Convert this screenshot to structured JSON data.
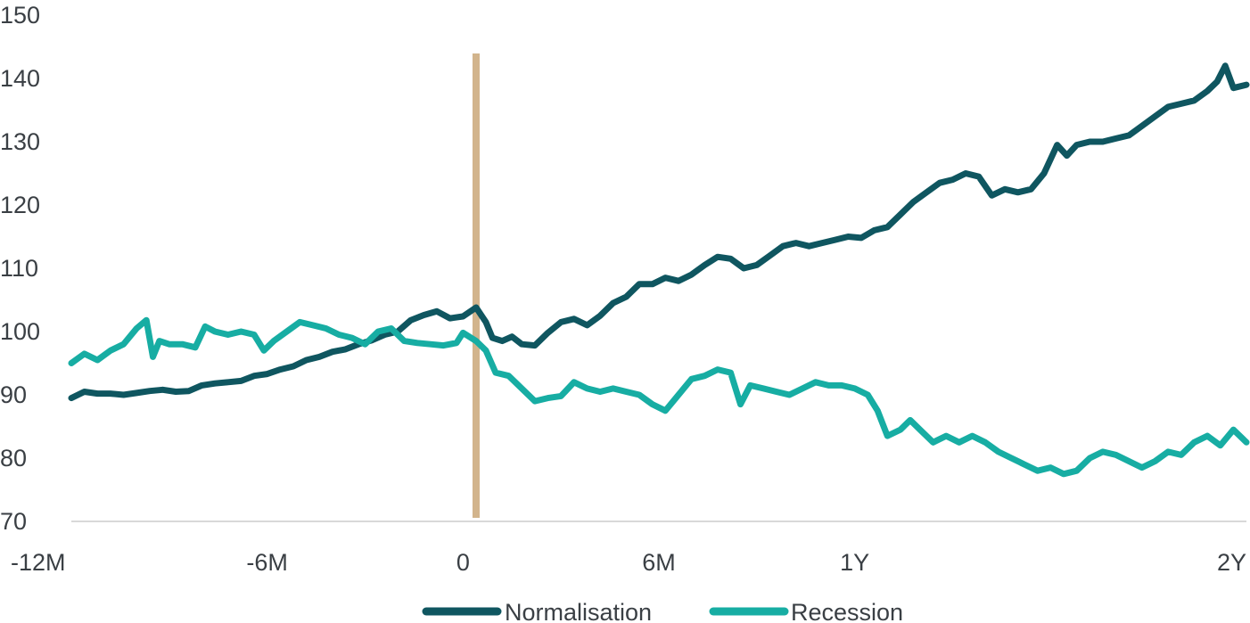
{
  "chart_data": {
    "type": "line",
    "title": "",
    "xlabel": "",
    "ylabel": "",
    "ylim": [
      70,
      150
    ],
    "yticks": [
      "70",
      "80",
      "90",
      "100",
      "110",
      "120",
      "130",
      "140",
      "150"
    ],
    "xlim": [
      -12,
      24
    ],
    "xtick_values": [
      -12,
      -6,
      0,
      6,
      12,
      24
    ],
    "xtick_labels": [
      "-12M",
      "-6M",
      "0",
      "6M",
      "1Y",
      "2Y"
    ],
    "grid": false,
    "legend_position": "bottom-center",
    "event_marker": {
      "x": 0.4,
      "color": "#d2b48c"
    },
    "series": [
      {
        "name": "Normalisation",
        "color": "#0f5660",
        "points": [
          [
            -12,
            89.5
          ],
          [
            -11.6,
            90.5
          ],
          [
            -11.2,
            90.2
          ],
          [
            -10.8,
            90.2
          ],
          [
            -10.4,
            90.0
          ],
          [
            -10.0,
            90.3
          ],
          [
            -9.6,
            90.6
          ],
          [
            -9.2,
            90.8
          ],
          [
            -8.8,
            90.5
          ],
          [
            -8.4,
            90.6
          ],
          [
            -8.0,
            91.5
          ],
          [
            -7.6,
            91.8
          ],
          [
            -7.2,
            92.0
          ],
          [
            -6.8,
            92.2
          ],
          [
            -6.4,
            93.0
          ],
          [
            -6.0,
            93.3
          ],
          [
            -5.6,
            94.0
          ],
          [
            -5.2,
            94.5
          ],
          [
            -4.8,
            95.5
          ],
          [
            -4.4,
            96.0
          ],
          [
            -4.0,
            96.8
          ],
          [
            -3.6,
            97.2
          ],
          [
            -3.2,
            98.0
          ],
          [
            -2.8,
            98.6
          ],
          [
            -2.4,
            99.5
          ],
          [
            -2.0,
            100.0
          ],
          [
            -1.6,
            101.8
          ],
          [
            -1.2,
            102.6
          ],
          [
            -0.8,
            103.2
          ],
          [
            -0.4,
            102.1
          ],
          [
            0.0,
            102.4
          ],
          [
            0.4,
            103.8
          ],
          [
            0.7,
            101.5
          ],
          [
            0.9,
            99.0
          ],
          [
            1.2,
            98.5
          ],
          [
            1.5,
            99.2
          ],
          [
            1.8,
            98.0
          ],
          [
            2.2,
            97.8
          ],
          [
            2.6,
            99.8
          ],
          [
            3.0,
            101.5
          ],
          [
            3.4,
            102.0
          ],
          [
            3.8,
            101.0
          ],
          [
            4.2,
            102.5
          ],
          [
            4.6,
            104.5
          ],
          [
            5.0,
            105.5
          ],
          [
            5.4,
            107.5
          ],
          [
            5.8,
            107.5
          ],
          [
            6.2,
            108.5
          ],
          [
            6.6,
            108.0
          ],
          [
            7.0,
            109.0
          ],
          [
            7.4,
            110.5
          ],
          [
            7.8,
            111.8
          ],
          [
            8.2,
            111.5
          ],
          [
            8.6,
            110.0
          ],
          [
            9.0,
            110.5
          ],
          [
            9.4,
            112.0
          ],
          [
            9.8,
            113.5
          ],
          [
            10.2,
            114.0
          ],
          [
            10.6,
            113.5
          ],
          [
            11.0,
            114.0
          ],
          [
            11.4,
            114.5
          ],
          [
            11.8,
            115.0
          ],
          [
            12.2,
            114.8
          ],
          [
            12.6,
            116.0
          ],
          [
            13.0,
            116.5
          ],
          [
            13.4,
            118.5
          ],
          [
            13.8,
            120.5
          ],
          [
            14.2,
            122.0
          ],
          [
            14.6,
            123.5
          ],
          [
            15.0,
            124.0
          ],
          [
            15.4,
            125.0
          ],
          [
            15.8,
            124.5
          ],
          [
            16.2,
            121.5
          ],
          [
            16.6,
            122.5
          ],
          [
            17.0,
            122.0
          ],
          [
            17.4,
            122.5
          ],
          [
            17.8,
            125.0
          ],
          [
            18.2,
            129.5
          ],
          [
            18.5,
            127.8
          ],
          [
            18.8,
            129.5
          ],
          [
            19.2,
            130.0
          ],
          [
            19.6,
            130.0
          ],
          [
            20.0,
            130.5
          ],
          [
            20.4,
            131.0
          ],
          [
            20.8,
            132.5
          ],
          [
            21.2,
            134.0
          ],
          [
            21.6,
            135.5
          ],
          [
            22.0,
            136.0
          ],
          [
            22.4,
            136.5
          ],
          [
            22.8,
            138.0
          ],
          [
            23.1,
            139.5
          ],
          [
            23.35,
            142.0
          ],
          [
            23.6,
            138.5
          ],
          [
            24.0,
            139.0
          ]
        ]
      },
      {
        "name": "Recession",
        "color": "#17ada3",
        "points": [
          [
            -12,
            95.0
          ],
          [
            -11.6,
            96.5
          ],
          [
            -11.2,
            95.5
          ],
          [
            -10.8,
            97.0
          ],
          [
            -10.4,
            98.0
          ],
          [
            -10.0,
            100.5
          ],
          [
            -9.7,
            101.8
          ],
          [
            -9.5,
            96.0
          ],
          [
            -9.3,
            98.5
          ],
          [
            -9.0,
            98.0
          ],
          [
            -8.6,
            98.0
          ],
          [
            -8.2,
            97.5
          ],
          [
            -7.9,
            100.8
          ],
          [
            -7.6,
            100.0
          ],
          [
            -7.2,
            99.5
          ],
          [
            -6.8,
            100.0
          ],
          [
            -6.4,
            99.5
          ],
          [
            -6.1,
            97.0
          ],
          [
            -5.8,
            98.5
          ],
          [
            -5.4,
            100.0
          ],
          [
            -5.0,
            101.5
          ],
          [
            -4.6,
            101.0
          ],
          [
            -4.2,
            100.5
          ],
          [
            -3.8,
            99.5
          ],
          [
            -3.4,
            99.0
          ],
          [
            -3.0,
            98.0
          ],
          [
            -2.6,
            100.0
          ],
          [
            -2.2,
            100.5
          ],
          [
            -1.8,
            98.5
          ],
          [
            -1.4,
            98.2
          ],
          [
            -1.0,
            98.0
          ],
          [
            -0.6,
            97.8
          ],
          [
            -0.2,
            98.2
          ],
          [
            0.0,
            99.8
          ],
          [
            0.4,
            98.5
          ],
          [
            0.7,
            97.0
          ],
          [
            1.0,
            93.5
          ],
          [
            1.4,
            93.0
          ],
          [
            1.8,
            91.0
          ],
          [
            2.2,
            89.0
          ],
          [
            2.6,
            89.5
          ],
          [
            3.0,
            89.8
          ],
          [
            3.4,
            92.0
          ],
          [
            3.8,
            91.0
          ],
          [
            4.2,
            90.5
          ],
          [
            4.6,
            91.0
          ],
          [
            5.0,
            90.5
          ],
          [
            5.4,
            90.0
          ],
          [
            5.8,
            88.5
          ],
          [
            6.2,
            87.5
          ],
          [
            6.6,
            90.0
          ],
          [
            7.0,
            92.5
          ],
          [
            7.4,
            93.0
          ],
          [
            7.8,
            94.0
          ],
          [
            8.2,
            93.5
          ],
          [
            8.5,
            88.5
          ],
          [
            8.8,
            91.5
          ],
          [
            9.2,
            91.0
          ],
          [
            9.6,
            90.5
          ],
          [
            10.0,
            90.0
          ],
          [
            10.4,
            91.0
          ],
          [
            10.8,
            92.0
          ],
          [
            11.2,
            91.5
          ],
          [
            11.6,
            91.5
          ],
          [
            12.0,
            91.0
          ],
          [
            12.4,
            90.0
          ],
          [
            12.7,
            87.5
          ],
          [
            13.0,
            83.5
          ],
          [
            13.4,
            84.5
          ],
          [
            13.7,
            86.0
          ],
          [
            14.0,
            84.5
          ],
          [
            14.4,
            82.5
          ],
          [
            14.8,
            83.5
          ],
          [
            15.2,
            82.5
          ],
          [
            15.6,
            83.5
          ],
          [
            16.0,
            82.5
          ],
          [
            16.4,
            81.0
          ],
          [
            16.8,
            80.0
          ],
          [
            17.2,
            79.0
          ],
          [
            17.6,
            78.0
          ],
          [
            18.0,
            78.5
          ],
          [
            18.4,
            77.5
          ],
          [
            18.8,
            78.0
          ],
          [
            19.2,
            80.0
          ],
          [
            19.6,
            81.0
          ],
          [
            20.0,
            80.5
          ],
          [
            20.4,
            79.5
          ],
          [
            20.8,
            78.5
          ],
          [
            21.2,
            79.5
          ],
          [
            21.6,
            81.0
          ],
          [
            22.0,
            80.5
          ],
          [
            22.4,
            82.5
          ],
          [
            22.8,
            83.5
          ],
          [
            23.2,
            82.0
          ],
          [
            23.6,
            84.5
          ],
          [
            24.0,
            82.5
          ]
        ]
      }
    ]
  }
}
